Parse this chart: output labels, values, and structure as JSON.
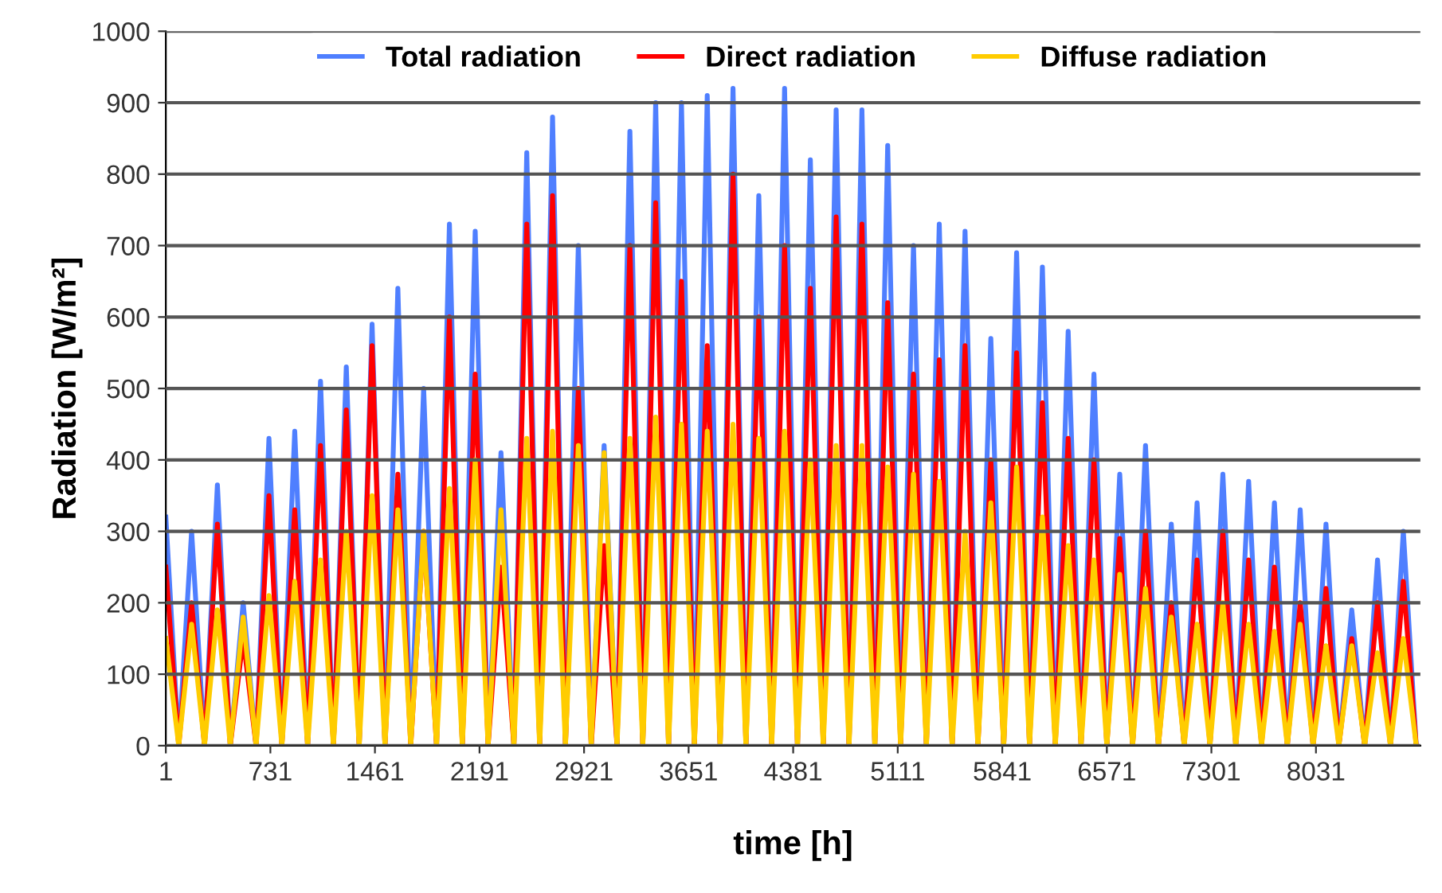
{
  "chart_data": {
    "type": "line",
    "xlabel": "time [h]",
    "ylabel": "Radiation [W/m²]",
    "x": [
      1,
      91,
      181,
      271,
      361,
      451,
      541,
      631,
      721,
      811,
      901,
      991,
      1081,
      1171,
      1261,
      1351,
      1441,
      1531,
      1621,
      1711,
      1801,
      1891,
      1981,
      2071,
      2161,
      2251,
      2341,
      2431,
      2521,
      2611,
      2701,
      2791,
      2881,
      2971,
      3061,
      3151,
      3241,
      3331,
      3421,
      3511,
      3601,
      3691,
      3781,
      3871,
      3961,
      4051,
      4141,
      4231,
      4321,
      4411,
      4501,
      4591,
      4681,
      4771,
      4861,
      4951,
      5041,
      5131,
      5221,
      5311,
      5401,
      5491,
      5581,
      5671,
      5761,
      5851,
      5941,
      6031,
      6121,
      6211,
      6301,
      6391,
      6481,
      6571,
      6661,
      6751,
      6841,
      6931,
      7021,
      7111,
      7201,
      7291,
      7381,
      7471,
      7561,
      7651,
      7741,
      7831,
      7921,
      8011,
      8101,
      8191,
      8281,
      8371,
      8461,
      8551,
      8641,
      8731
    ],
    "series": [
      {
        "name": "Total radiation",
        "color": "#4f7fff",
        "values": [
          320,
          0,
          300,
          0,
          365,
          0,
          200,
          0,
          430,
          0,
          440,
          0,
          510,
          0,
          530,
          0,
          590,
          0,
          640,
          0,
          500,
          0,
          730,
          0,
          720,
          0,
          410,
          0,
          830,
          0,
          880,
          0,
          700,
          0,
          420,
          0,
          860,
          0,
          900,
          0,
          900,
          0,
          910,
          0,
          920,
          0,
          770,
          0,
          920,
          0,
          820,
          0,
          890,
          0,
          890,
          0,
          840,
          0,
          700,
          0,
          730,
          0,
          720,
          0,
          570,
          0,
          690,
          0,
          670,
          0,
          580,
          0,
          520,
          0,
          380,
          0,
          420,
          0,
          310,
          0,
          340,
          0,
          380,
          0,
          370,
          0,
          340,
          0,
          330,
          0,
          310,
          0,
          190,
          0,
          260,
          0,
          300,
          0
        ]
      },
      {
        "name": "Direct radiation",
        "color": "#ff0000",
        "values": [
          250,
          0,
          200,
          0,
          310,
          0,
          150,
          0,
          350,
          0,
          330,
          0,
          420,
          0,
          470,
          0,
          560,
          0,
          380,
          0,
          300,
          0,
          600,
          0,
          520,
          0,
          250,
          0,
          730,
          0,
          770,
          0,
          500,
          0,
          280,
          0,
          700,
          0,
          760,
          0,
          650,
          0,
          560,
          0,
          800,
          0,
          600,
          0,
          700,
          0,
          640,
          0,
          740,
          0,
          730,
          0,
          620,
          0,
          520,
          0,
          540,
          0,
          560,
          0,
          400,
          0,
          550,
          0,
          480,
          0,
          430,
          0,
          400,
          0,
          290,
          0,
          300,
          0,
          200,
          0,
          260,
          0,
          300,
          0,
          260,
          0,
          250,
          0,
          200,
          0,
          220,
          0,
          150,
          0,
          200,
          0,
          230,
          0
        ]
      },
      {
        "name": "Diffuse radiation",
        "color": "#ffcc00",
        "values": [
          150,
          0,
          170,
          0,
          190,
          0,
          180,
          0,
          210,
          0,
          230,
          0,
          260,
          0,
          300,
          0,
          350,
          0,
          330,
          0,
          300,
          0,
          360,
          0,
          400,
          0,
          330,
          0,
          430,
          0,
          440,
          0,
          420,
          0,
          410,
          0,
          430,
          0,
          460,
          0,
          450,
          0,
          440,
          0,
          450,
          0,
          430,
          0,
          440,
          0,
          400,
          0,
          420,
          0,
          420,
          0,
          390,
          0,
          380,
          0,
          370,
          0,
          300,
          0,
          340,
          0,
          390,
          0,
          320,
          0,
          280,
          0,
          260,
          0,
          240,
          0,
          220,
          0,
          180,
          0,
          170,
          0,
          200,
          0,
          170,
          0,
          160,
          0,
          170,
          0,
          140,
          0,
          140,
          0,
          130,
          0,
          150,
          0
        ]
      }
    ],
    "xlim": [
      1,
      8760
    ],
    "xticks": [
      1,
      731,
      1461,
      2191,
      2921,
      3651,
      4381,
      5111,
      5841,
      6571,
      7301,
      8031
    ],
    "ylim": [
      0,
      1000
    ],
    "yticks": [
      0,
      100,
      200,
      300,
      400,
      500,
      600,
      700,
      800,
      900,
      1000
    ],
    "grid": "y",
    "legend": "top",
    "marker": "none",
    "line_style": "solid"
  }
}
